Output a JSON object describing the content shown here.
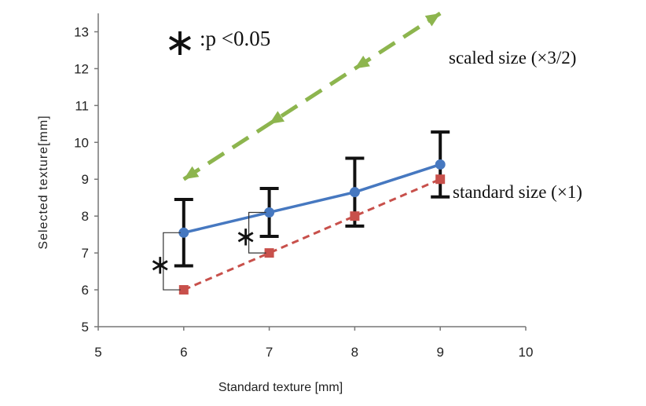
{
  "chart_data": {
    "type": "line",
    "xlabel": "Standard texture [mm]",
    "ylabel": "Selected texture[mm]",
    "xlim": [
      5,
      10
    ],
    "ylim": [
      5,
      13.5
    ],
    "x_ticks": [
      5,
      6,
      7,
      8,
      9,
      10
    ],
    "y_ticks": [
      5,
      6,
      7,
      8,
      9,
      10,
      11,
      12,
      13
    ],
    "grid": false,
    "x": [
      6,
      7,
      8,
      9
    ],
    "series": [
      {
        "name": "scaled size (×3/2)",
        "values": [
          9,
          10.5,
          12,
          13.5
        ],
        "color": "#8db54e",
        "style": "dashed-arrows"
      },
      {
        "name": "",
        "values": [
          7.55,
          8.1,
          8.65,
          9.4
        ],
        "error": [
          0.9,
          0.65,
          0.92,
          0.88
        ],
        "color": "#4678c0",
        "style": "solid-circle"
      },
      {
        "name": "standard size (×1)",
        "values": [
          6,
          7,
          8,
          9
        ],
        "color": "#c8504b",
        "style": "dashed-square"
      }
    ],
    "significance": {
      "symbol": "∗",
      "legend": ":p <0.05",
      "at_x": [
        6,
        7
      ]
    }
  }
}
